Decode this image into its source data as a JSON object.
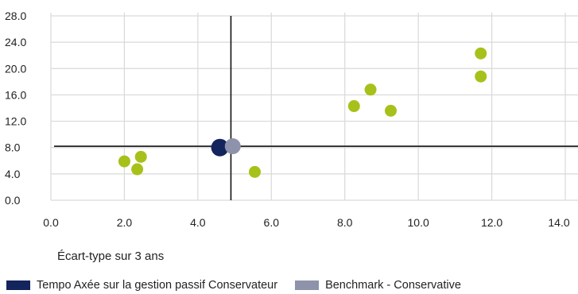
{
  "chart_data": {
    "type": "scatter",
    "xlabel": "Écart-type sur 3 ans",
    "ylabel": "",
    "xlim": [
      0,
      14
    ],
    "ylim": [
      0,
      28
    ],
    "x_ticks": [
      "0.0",
      "2.0",
      "4.0",
      "6.0",
      "8.0",
      "10.0",
      "12.0",
      "14.0"
    ],
    "y_ticks": [
      "0.0",
      "4.0",
      "8.0",
      "12.0",
      "16.0",
      "20.0",
      "24.0",
      "28.0"
    ],
    "grid": true,
    "reference_lines": {
      "x": 4.9,
      "y": 8.2
    },
    "series": [
      {
        "name": "Tempo Axée sur la gestion passif Conservateur",
        "color": "#14245c",
        "points": [
          [
            4.6,
            8.0
          ]
        ]
      },
      {
        "name": "Benchmark - Conservative",
        "color": "#8e93ab",
        "points": [
          [
            4.95,
            8.2
          ]
        ]
      },
      {
        "color": "#a8c11a",
        "points": [
          [
            2.0,
            5.9
          ],
          [
            2.45,
            6.6
          ],
          [
            2.35,
            4.7
          ],
          [
            5.55,
            4.3
          ],
          [
            8.25,
            14.3
          ],
          [
            8.7,
            16.8
          ],
          [
            9.25,
            13.6
          ],
          [
            11.7,
            22.3
          ],
          [
            11.7,
            18.8
          ]
        ]
      }
    ],
    "legend_position": "bottom"
  }
}
